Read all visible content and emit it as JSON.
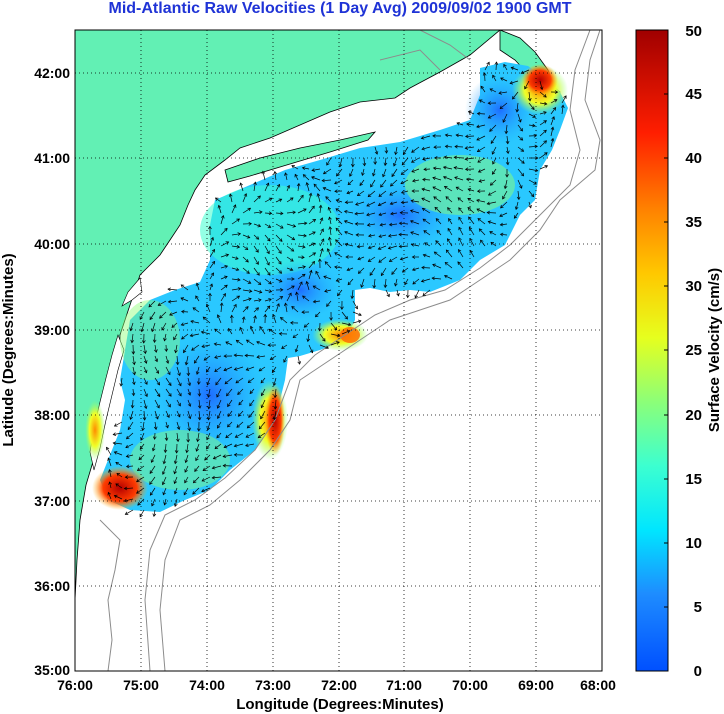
{
  "title": "Mid-Atlantic Raw Velocities (1 Day Avg) 2009/09/02 1900 GMT",
  "x_axis": {
    "label": "Longitude (Degrees:Minutes)",
    "ticks": [
      "76:00",
      "75:00",
      "74:00",
      "73:00",
      "72:00",
      "71:00",
      "70:00",
      "69:00",
      "68:00"
    ]
  },
  "y_axis": {
    "label": "Latitude (Degrees:Minutes)",
    "ticks": [
      "42:00",
      "41:00",
      "40:00",
      "39:00",
      "38:00",
      "37:00",
      "36:00",
      "35:00"
    ]
  },
  "colorbar": {
    "label": "Surface Velocity (cm/s)",
    "ticks": [
      "50",
      "45",
      "40",
      "35",
      "30",
      "25",
      "20",
      "15",
      "10",
      "5",
      "0"
    ],
    "range": [
      0,
      50
    ]
  },
  "colors": {
    "land": "#62f0b4",
    "title": "#1f33d6",
    "coastline": "#000000",
    "bathymetry": "#8c8c8c"
  }
}
